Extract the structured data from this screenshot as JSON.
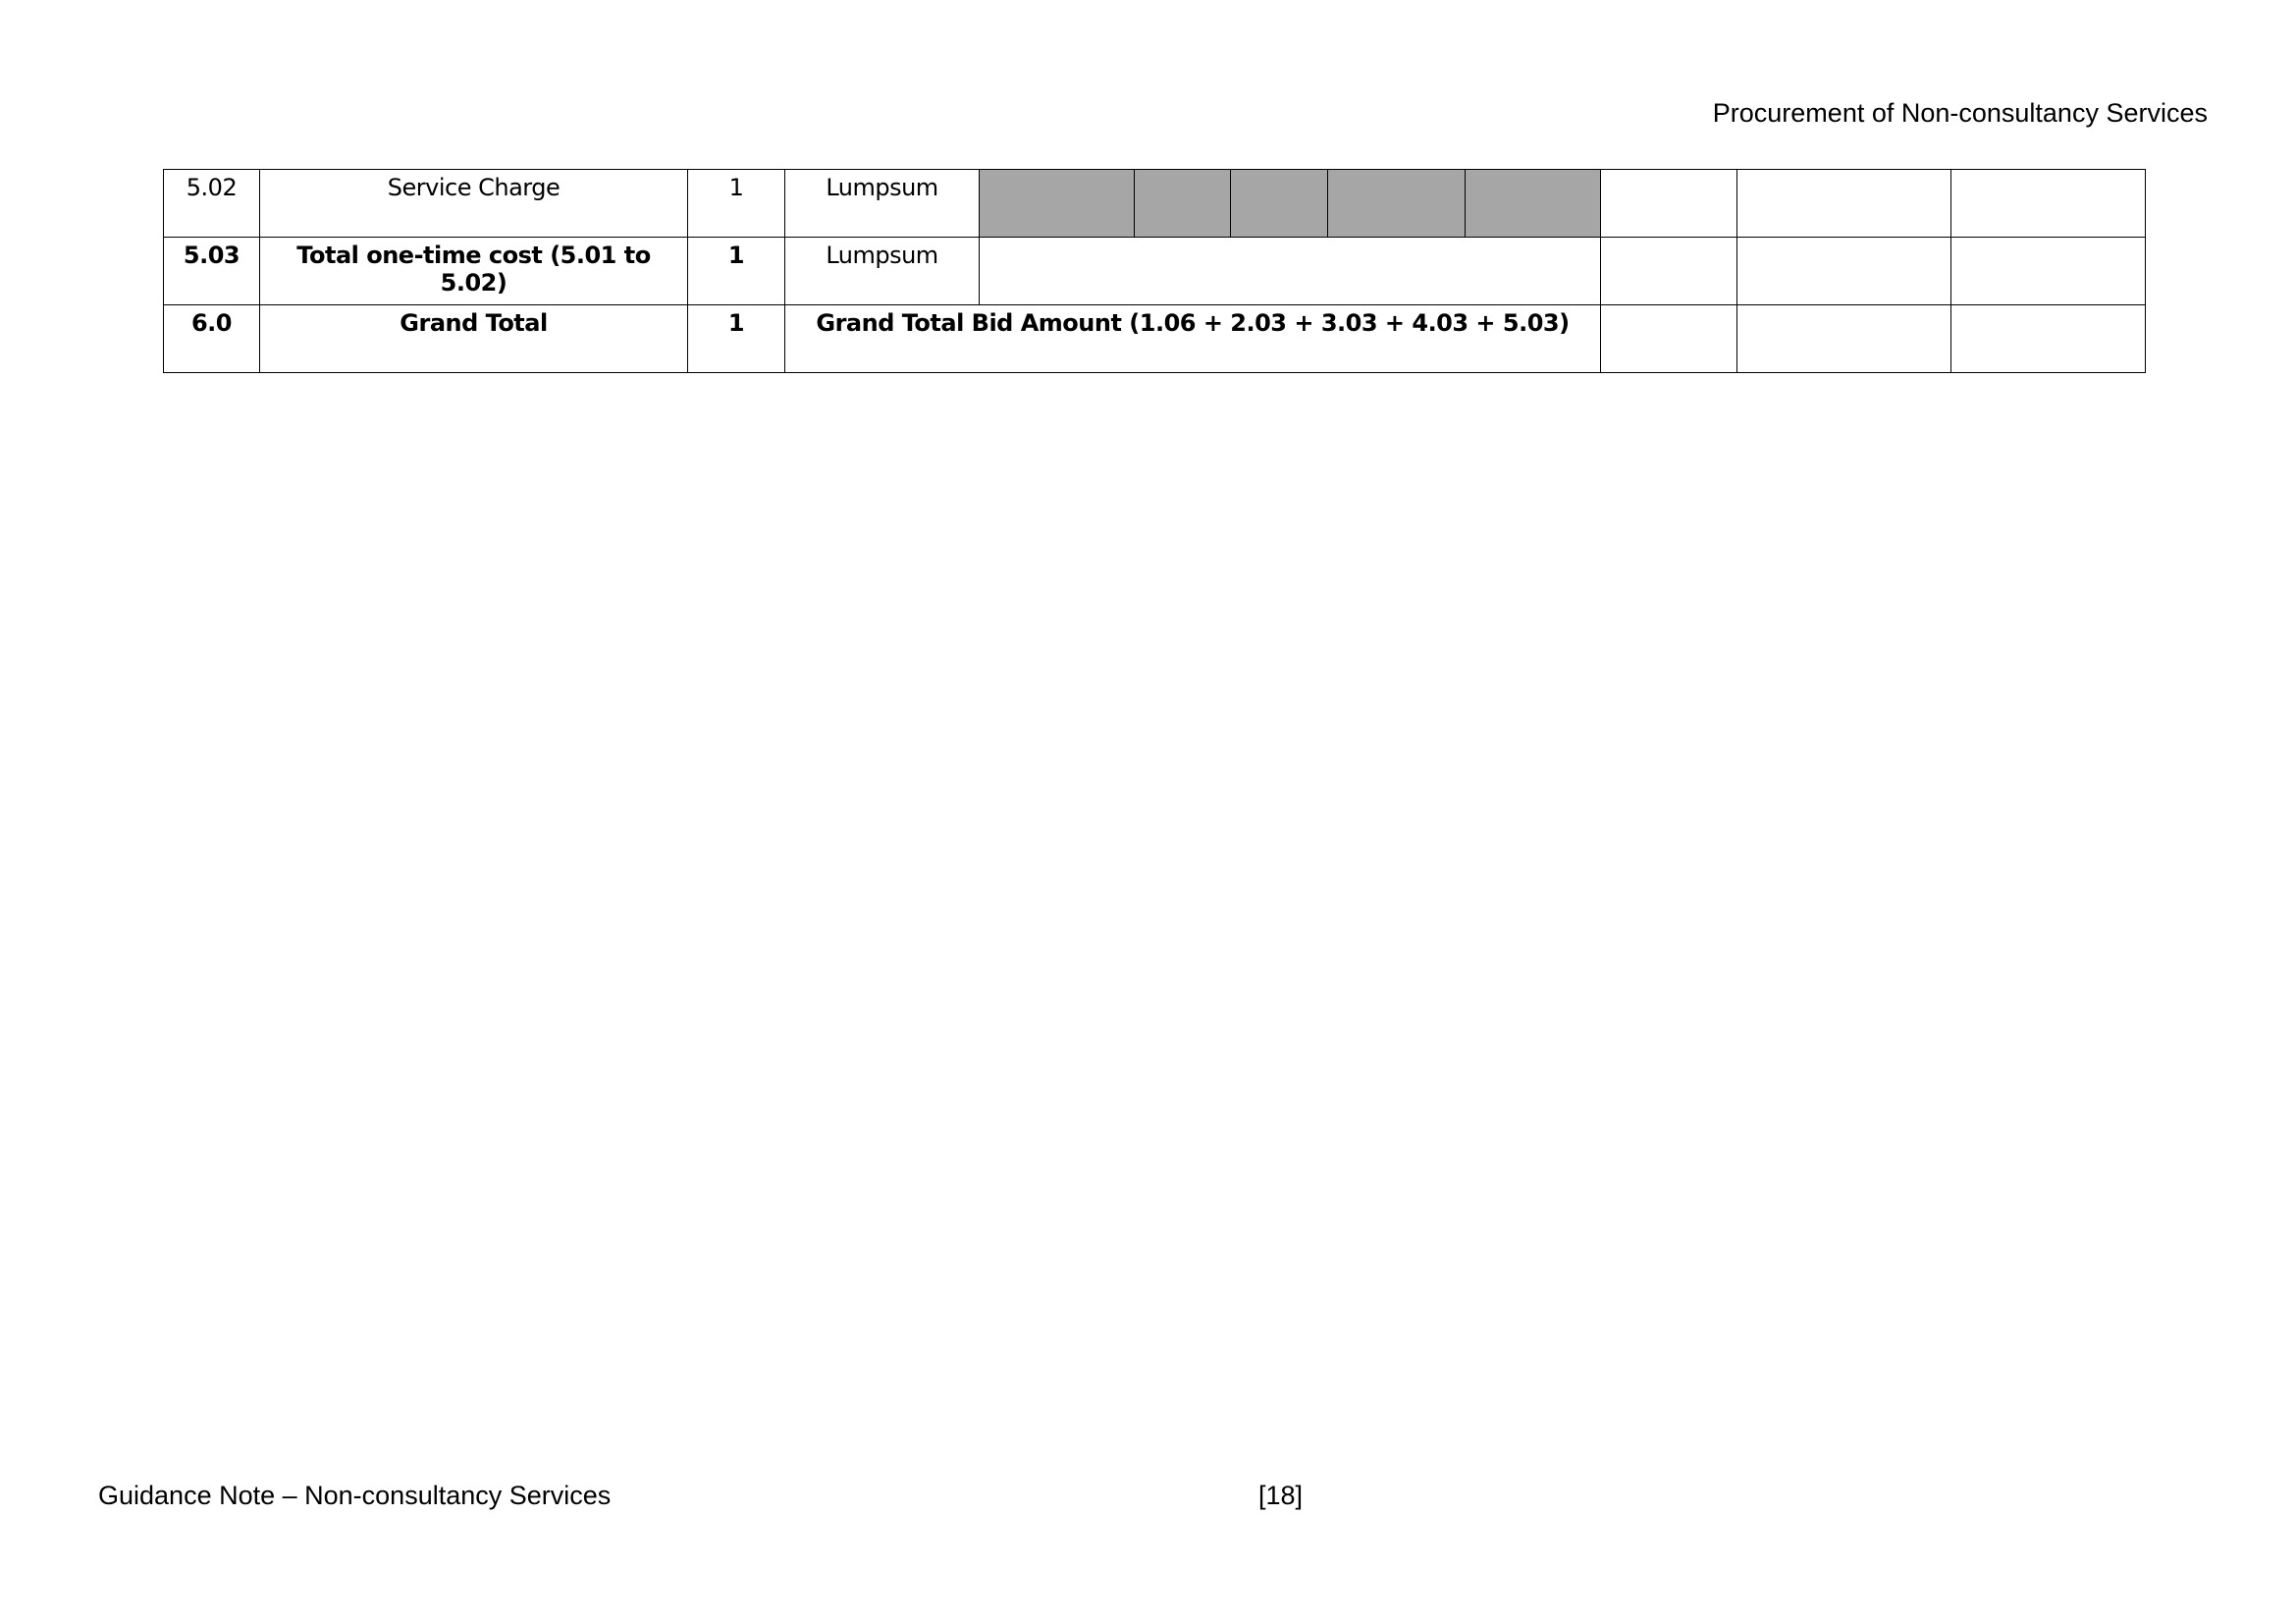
{
  "header": {
    "title": "Procurement of Non-consultancy Services"
  },
  "table": {
    "rows": [
      {
        "no": "5.02",
        "description": "Service Charge",
        "qty": "1",
        "unit": "Lumpsum"
      },
      {
        "no": "5.03",
        "description": "Total one-time cost (5.01 to 5.02)",
        "qty": "1",
        "unit": "Lumpsum"
      },
      {
        "no": "6.0",
        "description": "Grand Total",
        "qty": "1",
        "merged": "Grand Total Bid Amount (1.06 + 2.03 + 3.03 + 4.03 + 5.03)"
      }
    ],
    "shaded_color": "#a6a6a6"
  },
  "footer": {
    "left": "Guidance Note – Non-consultancy Services",
    "page": "[18]"
  }
}
